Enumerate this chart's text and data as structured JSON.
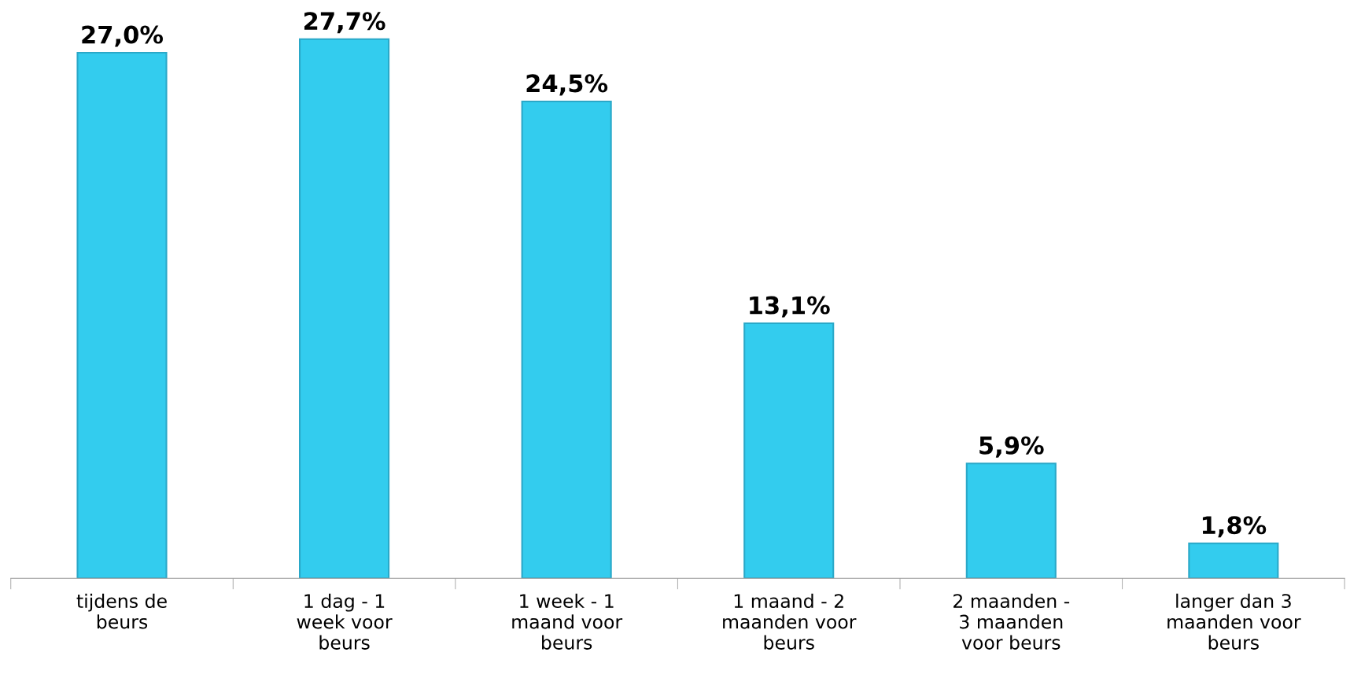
{
  "chart_data": {
    "type": "bar",
    "categories": [
      "tijdens de\nbeurs",
      "1 dag - 1\nweek voor\nbeurs",
      "1 week - 1\nmaand voor\nbeurs",
      "1 maand - 2\nmaanden voor\nbeurs",
      "2 maanden -\n3 maanden\nvoor beurs",
      "langer dan 3\nmaanden voor\nbeurs"
    ],
    "values": [
      27.0,
      27.7,
      24.5,
      13.1,
      5.9,
      1.8
    ],
    "value_labels": [
      "27,0%",
      "27,7%",
      "24,5%",
      "13,1%",
      "5,9%",
      "1,8%"
    ],
    "color": "#33ccee",
    "grid": false,
    "legend": false
  }
}
